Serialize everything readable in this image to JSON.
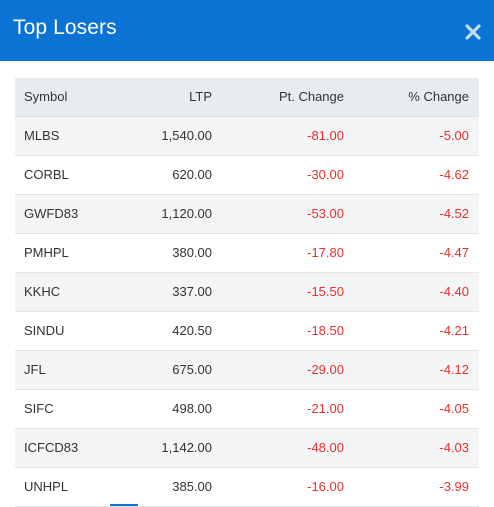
{
  "modal": {
    "title": "Top Losers",
    "close_icon": "close-icon",
    "header_color": "#0a73d3",
    "negative_color": "#e5302f"
  },
  "table": {
    "columns": [
      "Symbol",
      "LTP",
      "Pt. Change",
      "% Change"
    ],
    "rows": [
      {
        "symbol": "MLBS",
        "ltp": "1,540.00",
        "pt_change": "-81.00",
        "pct_change": "-5.00"
      },
      {
        "symbol": "CORBL",
        "ltp": "620.00",
        "pt_change": "-30.00",
        "pct_change": "-4.62"
      },
      {
        "symbol": "GWFD83",
        "ltp": "1,120.00",
        "pt_change": "-53.00",
        "pct_change": "-4.52"
      },
      {
        "symbol": "PMHPL",
        "ltp": "380.00",
        "pt_change": "-17.80",
        "pct_change": "-4.47"
      },
      {
        "symbol": "KKHC",
        "ltp": "337.00",
        "pt_change": "-15.50",
        "pct_change": "-4.40"
      },
      {
        "symbol": "SINDU",
        "ltp": "420.50",
        "pt_change": "-18.50",
        "pct_change": "-4.21"
      },
      {
        "symbol": "JFL",
        "ltp": "675.00",
        "pt_change": "-29.00",
        "pct_change": "-4.12"
      },
      {
        "symbol": "SIFC",
        "ltp": "498.00",
        "pt_change": "-21.00",
        "pct_change": "-4.05"
      },
      {
        "symbol": "ICFCD83",
        "ltp": "1,142.00",
        "pt_change": "-48.00",
        "pct_change": "-4.03"
      },
      {
        "symbol": "UNHPL",
        "ltp": "385.00",
        "pt_change": "-16.00",
        "pct_change": "-3.99"
      }
    ]
  }
}
